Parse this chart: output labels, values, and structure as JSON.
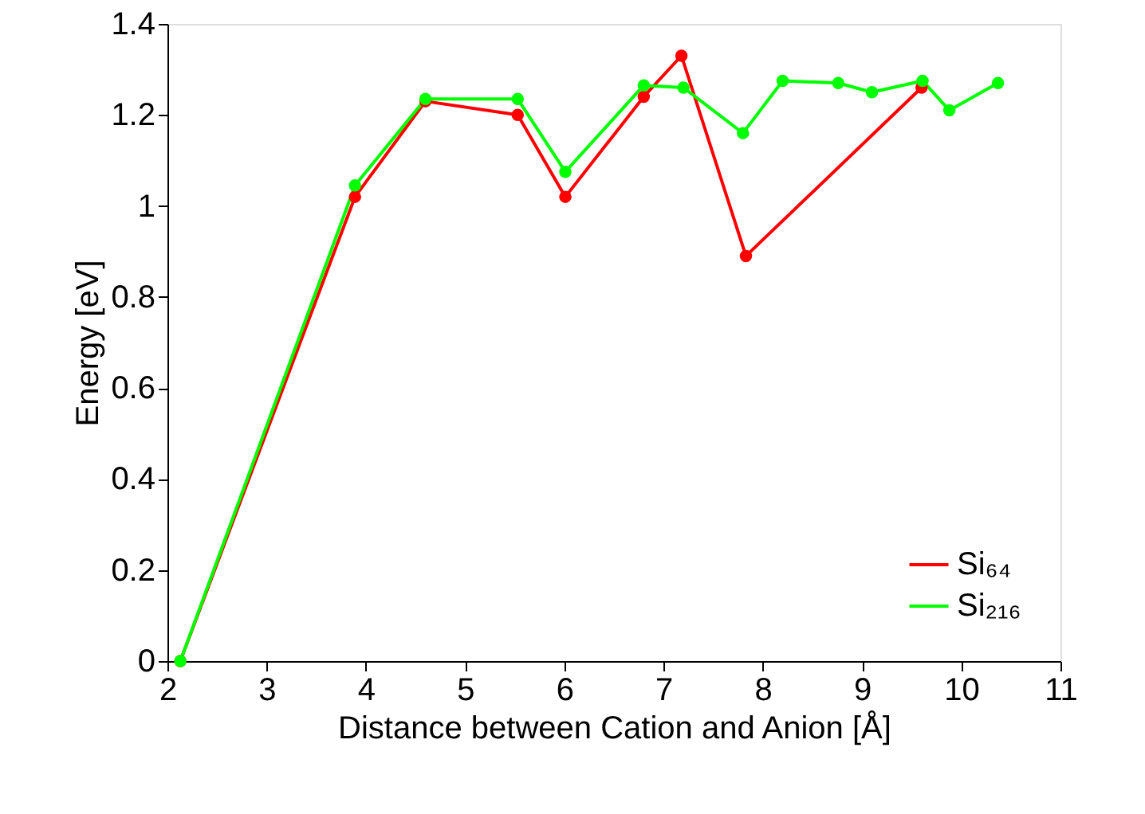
{
  "chart_data": {
    "type": "line",
    "xlabel": "Distance between Cation and Anion [Å]",
    "ylabel": "Energy [eV]",
    "xlim": [
      2,
      11
    ],
    "xticks": [
      2,
      3,
      4,
      5,
      6,
      7,
      8,
      9,
      10,
      11
    ],
    "ylim": [
      0,
      1.4
    ],
    "yticks": [
      0,
      0.2,
      0.4,
      0.6,
      0.8,
      1,
      1.2,
      1.4
    ],
    "grid": false,
    "legend": "bottom right",
    "marker": "circle",
    "line_style": "solid",
    "series": [
      {
        "name": "Si₆₄",
        "color": "#ff0000",
        "x": [
          2.13,
          3.89,
          4.6,
          5.53,
          6.01,
          6.8,
          7.18,
          7.83,
          9.6
        ],
        "values": [
          0,
          1.02,
          1.23,
          1.2,
          1.02,
          1.24,
          1.33,
          0.89,
          1.26
        ]
      },
      {
        "name": "Si₂₁₆",
        "color": "#00ff00",
        "x": [
          2.13,
          3.89,
          4.6,
          5.53,
          6.01,
          6.8,
          7.2,
          7.8,
          8.2,
          8.76,
          9.1,
          9.61,
          9.88,
          10.37
        ],
        "values": [
          0,
          1.045,
          1.235,
          1.235,
          1.075,
          1.265,
          1.26,
          1.16,
          1.275,
          1.27,
          1.25,
          1.275,
          1.21,
          1.27
        ]
      }
    ]
  }
}
